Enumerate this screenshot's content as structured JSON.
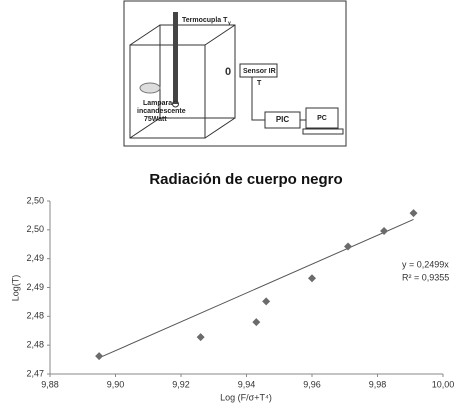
{
  "diagram": {
    "thermocouple": "Termocupla T",
    "thermocouple_sub": "y",
    "zero": "0",
    "sensor": "Sensor IR",
    "sensor_out": "T",
    "lamp": [
      "Lampara",
      "incandescente",
      "75Watt"
    ],
    "pic": "PIC",
    "pc": "PC"
  },
  "chart_data": {
    "type": "scatter",
    "title": "Radiación de cuerpo negro",
    "x_label": "Log (F/σ+T⁴)",
    "y_label": "Log(T)",
    "series": [
      {
        "name": "Log(T)",
        "color": "#6b6b6b",
        "x": [
          9.895,
          9.926,
          9.943,
          9.946,
          9.96,
          9.971,
          9.982,
          9.991
        ],
        "values": [
          2.4731,
          2.4764,
          2.479,
          2.4826,
          2.4866,
          2.4921,
          2.4948,
          2.4979
        ]
      }
    ],
    "trendline": {
      "color": "#555555",
      "x": [
        9.895,
        9.991
      ],
      "values": [
        2.4728,
        2.4968
      ]
    },
    "annotations": [
      "y = 0,2499x",
      "R² = 0,9355"
    ],
    "xlim": [
      9.88,
      10.0
    ],
    "xticks": [
      {
        "value": 9.88,
        "label": "9,88"
      },
      {
        "value": 9.9,
        "label": "9,90"
      },
      {
        "value": 9.92,
        "label": "9,92"
      },
      {
        "value": 9.94,
        "label": "9,94"
      },
      {
        "value": 9.96,
        "label": "9,96"
      },
      {
        "value": 9.98,
        "label": "9,98"
      },
      {
        "value": 10.0,
        "label": "10,00"
      }
    ],
    "ylim": [
      2.47,
      2.5
    ],
    "yticks": [
      {
        "value": 2.47,
        "label": "2,47"
      },
      {
        "value": 2.475,
        "label": "2,48"
      },
      {
        "value": 2.48,
        "label": "2,48"
      },
      {
        "value": 2.485,
        "label": "2,49"
      },
      {
        "value": 2.49,
        "label": "2,49"
      },
      {
        "value": 2.495,
        "label": "2,50"
      },
      {
        "value": 2.5,
        "label": "2,50"
      }
    ],
    "grid": false
  }
}
